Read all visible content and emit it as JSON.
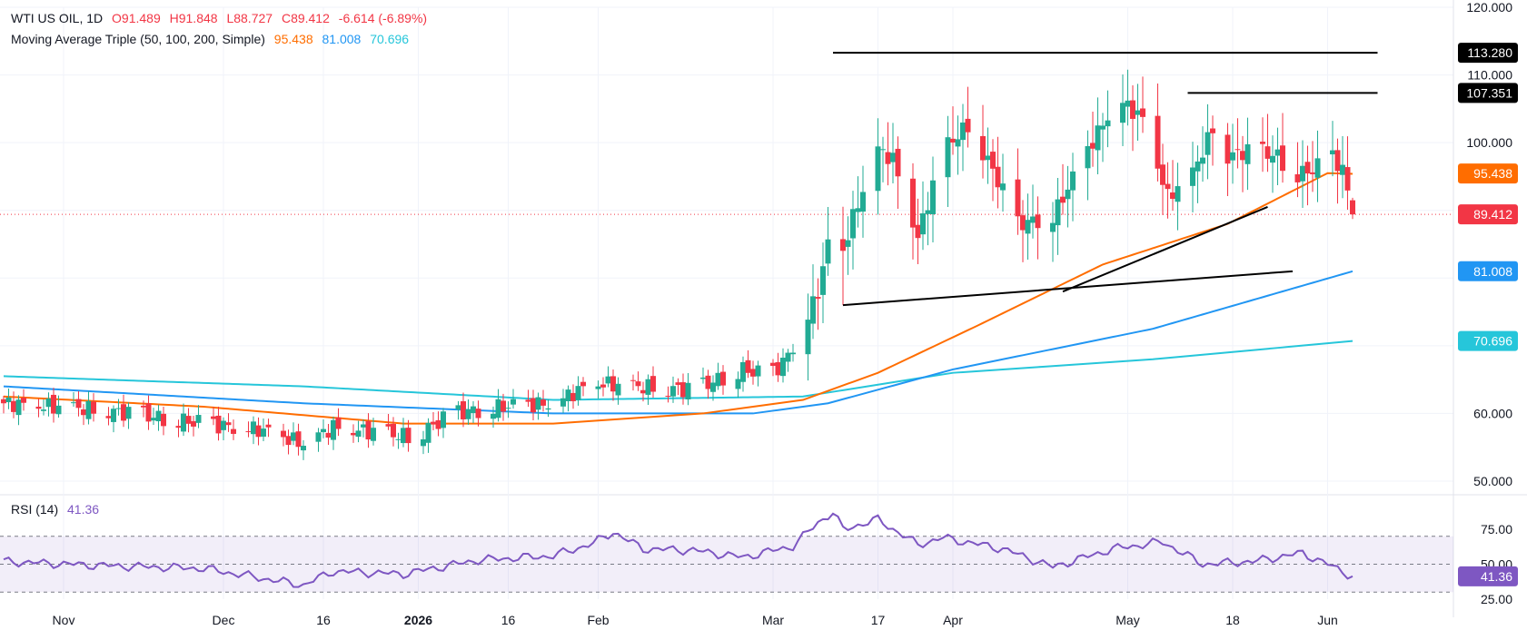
{
  "symbol": {
    "title": "WTI US OIL, 1D",
    "open": "O91.489",
    "high": "H91.848",
    "low": "L88.727",
    "close": "C89.412",
    "change": "-6.614 (-6.89%)"
  },
  "ma_legend": {
    "label": "Moving Average Triple (50, 100, 200, Simple)",
    "ma50": "95.438",
    "ma100": "81.008",
    "ma200": "70.696"
  },
  "rsi_legend": {
    "label": "RSI (14)",
    "value": "41.36"
  },
  "price_badges": {
    "high_line": "113.280",
    "resistance": "107.351",
    "ma50": "95.438",
    "last": "89.412",
    "ma100": "81.008",
    "ma200": "70.696",
    "rsi": "41.36"
  },
  "colors": {
    "up": "#22ab94",
    "down": "#f23645",
    "ma50": "#ff6d00",
    "ma100": "#2196f3",
    "ma200": "#26c6da",
    "rsi": "#7e57c2"
  },
  "chart_data": {
    "type": "candlestick",
    "y_ticks": [
      "120.000",
      "110.000",
      "100.000",
      "60.000",
      "50.000"
    ],
    "ylim": [
      50,
      120
    ],
    "x_ticks": [
      "Nov",
      "Dec",
      "16",
      "2026",
      "16",
      "Feb",
      "Mar",
      "17",
      "Apr",
      "May",
      "18",
      "Jun"
    ],
    "last_price": 89.412,
    "ohlc_keyframes": [
      {
        "t": 0,
        "c": 61.5
      },
      {
        "t": 20,
        "c": 60.5
      },
      {
        "t": 40,
        "c": 58.5
      },
      {
        "t": 52,
        "c": 57.5
      },
      {
        "t": 60,
        "c": 55.5
      },
      {
        "t": 66,
        "c": 58.0
      },
      {
        "t": 82,
        "c": 56.5
      },
      {
        "t": 90,
        "c": 60.0
      },
      {
        "t": 100,
        "c": 61.0
      },
      {
        "t": 110,
        "c": 61.5
      },
      {
        "t": 118,
        "c": 64.5
      },
      {
        "t": 126,
        "c": 64.0
      },
      {
        "t": 138,
        "c": 63.5
      },
      {
        "t": 148,
        "c": 66.5
      },
      {
        "t": 153,
        "c": 65.5
      },
      {
        "t": 156,
        "c": 67.5
      },
      {
        "t": 160,
        "c": 72.5
      },
      {
        "t": 163,
        "c": 78.0
      },
      {
        "t": 165,
        "c": 85.0
      },
      {
        "t": 166,
        "c": 96.0
      },
      {
        "t": 168,
        "c": 84.0
      },
      {
        "t": 170,
        "c": 89.0
      },
      {
        "t": 175,
        "c": 99.0
      },
      {
        "t": 178,
        "c": 97.5
      },
      {
        "t": 183,
        "c": 86.0
      },
      {
        "t": 188,
        "c": 99.0
      },
      {
        "t": 193,
        "c": 102.5
      },
      {
        "t": 198,
        "c": 96.0
      },
      {
        "t": 203,
        "c": 88.0
      },
      {
        "t": 210,
        "c": 89.0
      },
      {
        "t": 217,
        "c": 99.0
      },
      {
        "t": 223,
        "c": 106.5
      },
      {
        "t": 228,
        "c": 103.5
      },
      {
        "t": 233,
        "c": 92.0
      },
      {
        "t": 238,
        "c": 95.5
      },
      {
        "t": 242,
        "c": 102.0
      },
      {
        "t": 245,
        "c": 98.0
      },
      {
        "t": 250,
        "c": 99.0
      },
      {
        "t": 255,
        "c": 98.0
      },
      {
        "t": 258,
        "c": 95.0
      },
      {
        "t": 262,
        "c": 96.0
      },
      {
        "t": 266,
        "c": 98.0
      },
      {
        "t": 268,
        "c": 96.0
      },
      {
        "t": 270,
        "c": 89.4
      }
    ],
    "ma50": [
      {
        "t": 0,
        "v": 62.5
      },
      {
        "t": 40,
        "v": 61.0
      },
      {
        "t": 80,
        "v": 58.5
      },
      {
        "t": 110,
        "v": 58.5
      },
      {
        "t": 140,
        "v": 60.0
      },
      {
        "t": 160,
        "v": 62.0
      },
      {
        "t": 175,
        "v": 66.0
      },
      {
        "t": 195,
        "v": 73.0
      },
      {
        "t": 220,
        "v": 82.0
      },
      {
        "t": 245,
        "v": 88.0
      },
      {
        "t": 265,
        "v": 95.5
      },
      {
        "t": 270,
        "v": 95.4
      }
    ],
    "ma100": [
      {
        "t": 0,
        "v": 64.0
      },
      {
        "t": 60,
        "v": 61.5
      },
      {
        "t": 110,
        "v": 60.0
      },
      {
        "t": 150,
        "v": 60.0
      },
      {
        "t": 165,
        "v": 61.5
      },
      {
        "t": 190,
        "v": 66.5
      },
      {
        "t": 230,
        "v": 72.5
      },
      {
        "t": 270,
        "v": 81.0
      }
    ],
    "ma200": [
      {
        "t": 0,
        "v": 65.5
      },
      {
        "t": 60,
        "v": 64.0
      },
      {
        "t": 110,
        "v": 62.0
      },
      {
        "t": 160,
        "v": 62.5
      },
      {
        "t": 190,
        "v": 66.0
      },
      {
        "t": 230,
        "v": 68.0
      },
      {
        "t": 270,
        "v": 70.7
      }
    ],
    "trendlines": [
      {
        "name": "high-line",
        "t1": 166,
        "v1": 113.28,
        "t2": 275,
        "v2": 113.28
      },
      {
        "name": "resistance-line",
        "t1": 237,
        "v1": 107.351,
        "t2": 275,
        "v2": 107.351
      },
      {
        "name": "support-line-lower",
        "t1": 168,
        "v1": 76.0,
        "t2": 258,
        "v2": 81.0
      },
      {
        "name": "support-line-upper",
        "t1": 212,
        "v1": 78.0,
        "t2": 253,
        "v2": 90.5
      }
    ],
    "rsi": {
      "ylim": [
        25,
        90
      ],
      "ticks": [
        "75.00",
        "50.00",
        "25.00"
      ],
      "levels": [
        70,
        50,
        30
      ],
      "keyframes": [
        {
          "t": 0,
          "v": 52
        },
        {
          "t": 20,
          "v": 49
        },
        {
          "t": 40,
          "v": 47
        },
        {
          "t": 60,
          "v": 35
        },
        {
          "t": 66,
          "v": 45
        },
        {
          "t": 80,
          "v": 43
        },
        {
          "t": 95,
          "v": 53
        },
        {
          "t": 110,
          "v": 56
        },
        {
          "t": 118,
          "v": 65
        },
        {
          "t": 122,
          "v": 73
        },
        {
          "t": 128,
          "v": 61
        },
        {
          "t": 138,
          "v": 60
        },
        {
          "t": 148,
          "v": 55
        },
        {
          "t": 158,
          "v": 63
        },
        {
          "t": 163,
          "v": 80
        },
        {
          "t": 166,
          "v": 87
        },
        {
          "t": 168,
          "v": 75
        },
        {
          "t": 175,
          "v": 82
        },
        {
          "t": 183,
          "v": 64
        },
        {
          "t": 188,
          "v": 69
        },
        {
          "t": 200,
          "v": 61
        },
        {
          "t": 210,
          "v": 48
        },
        {
          "t": 222,
          "v": 61
        },
        {
          "t": 232,
          "v": 66
        },
        {
          "t": 240,
          "v": 50
        },
        {
          "t": 250,
          "v": 52
        },
        {
          "t": 260,
          "v": 58
        },
        {
          "t": 265,
          "v": 50
        },
        {
          "t": 270,
          "v": 41.36
        }
      ]
    }
  }
}
